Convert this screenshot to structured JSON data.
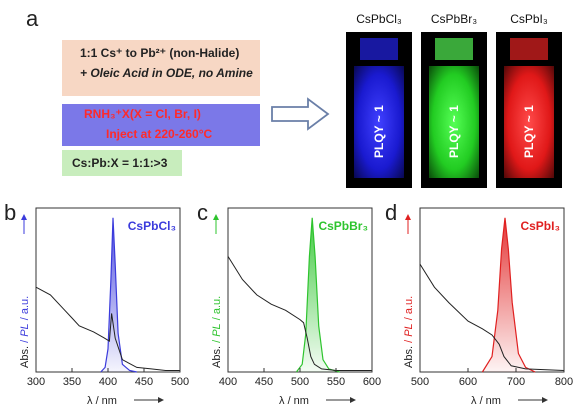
{
  "panels": {
    "a": "a",
    "b": "b",
    "c": "c",
    "d": "d"
  },
  "synthesis": {
    "box1_line1": "1:1 Cs⁺ to Pb²⁺ (non-Halide)",
    "box1_line2": "+ Oleic Acid in ODE, no Amine",
    "box2_line1": "RNH₃⁺X(X = Cl, Br, I)",
    "box2_line2": "Inject at 220-260°C",
    "box3": "Cs:Pb:X = 1:1:>3"
  },
  "vials": [
    {
      "title": "CsPbCl₃",
      "label": "PLQY ~ 1",
      "color": "#2a2aff"
    },
    {
      "title": "CsPbBr₃",
      "label": "PLQY ~ 1",
      "color": "#22dd22"
    },
    {
      "title": "CsPbI₃",
      "label": "PLQY ~ 1",
      "color": "#ff2020"
    }
  ],
  "colors": {
    "blue": "#3b3bdc",
    "green": "#2ec42e",
    "red": "#e02020",
    "absorbance": "#222222"
  },
  "chart_data": [
    {
      "type": "line",
      "title": "CsPbCl₃",
      "xlabel": "λ / nm",
      "ylabel_parts": [
        "Abs.",
        "/",
        "PL",
        "/ a.u."
      ],
      "xlim": [
        300,
        500
      ],
      "xticks": [
        300,
        350,
        400,
        450,
        500
      ],
      "series": [
        {
          "name": "Abs.",
          "x": [
            300,
            320,
            340,
            350,
            360,
            380,
            395,
            402,
            405,
            410,
            420,
            440,
            460,
            480,
            500
          ],
          "y": [
            0.55,
            0.5,
            0.4,
            0.35,
            0.3,
            0.26,
            0.22,
            0.2,
            0.38,
            0.22,
            0.08,
            0.03,
            0.02,
            0.01,
            0.01
          ]
        },
        {
          "name": "PL",
          "x": [
            390,
            396,
            400,
            404,
            407,
            410,
            414,
            420,
            430,
            440
          ],
          "y": [
            0.0,
            0.03,
            0.15,
            0.6,
            1.0,
            0.7,
            0.25,
            0.05,
            0.01,
            0.0
          ]
        }
      ]
    },
    {
      "type": "line",
      "title": "CsPbBr₃",
      "xlabel": "λ / nm",
      "ylabel_parts": [
        "Abs.",
        "/",
        "PL",
        "/ a.u."
      ],
      "xlim": [
        400,
        600
      ],
      "xticks": [
        400,
        450,
        500,
        550,
        600
      ],
      "series": [
        {
          "name": "Abs.",
          "x": [
            400,
            420,
            440,
            460,
            480,
            500,
            505,
            510,
            515,
            520,
            530,
            550,
            600
          ],
          "y": [
            0.75,
            0.6,
            0.5,
            0.44,
            0.4,
            0.34,
            0.32,
            0.22,
            0.1,
            0.05,
            0.02,
            0.01,
            0.01
          ]
        },
        {
          "name": "PL",
          "x": [
            495,
            503,
            508,
            513,
            517,
            521,
            526,
            532,
            540,
            555
          ],
          "y": [
            0.0,
            0.05,
            0.25,
            0.75,
            1.0,
            0.75,
            0.3,
            0.08,
            0.02,
            0.0
          ]
        }
      ]
    },
    {
      "type": "line",
      "title": "CsPbI₃",
      "xlabel": "λ / nm",
      "ylabel_parts": [
        "Abs.",
        "/",
        "PL",
        "/ a.u."
      ],
      "xlim": [
        500,
        800
      ],
      "xticks": [
        500,
        600,
        700,
        800
      ],
      "series": [
        {
          "name": "Abs.",
          "x": [
            500,
            530,
            560,
            600,
            630,
            650,
            665,
            675,
            690,
            720,
            800
          ],
          "y": [
            0.7,
            0.55,
            0.45,
            0.33,
            0.28,
            0.24,
            0.18,
            0.1,
            0.04,
            0.02,
            0.01
          ]
        },
        {
          "name": "PL",
          "x": [
            630,
            650,
            662,
            670,
            677,
            684,
            692,
            705,
            720,
            740
          ],
          "y": [
            0.0,
            0.1,
            0.4,
            0.8,
            1.0,
            0.8,
            0.45,
            0.12,
            0.03,
            0.0
          ]
        }
      ]
    }
  ]
}
